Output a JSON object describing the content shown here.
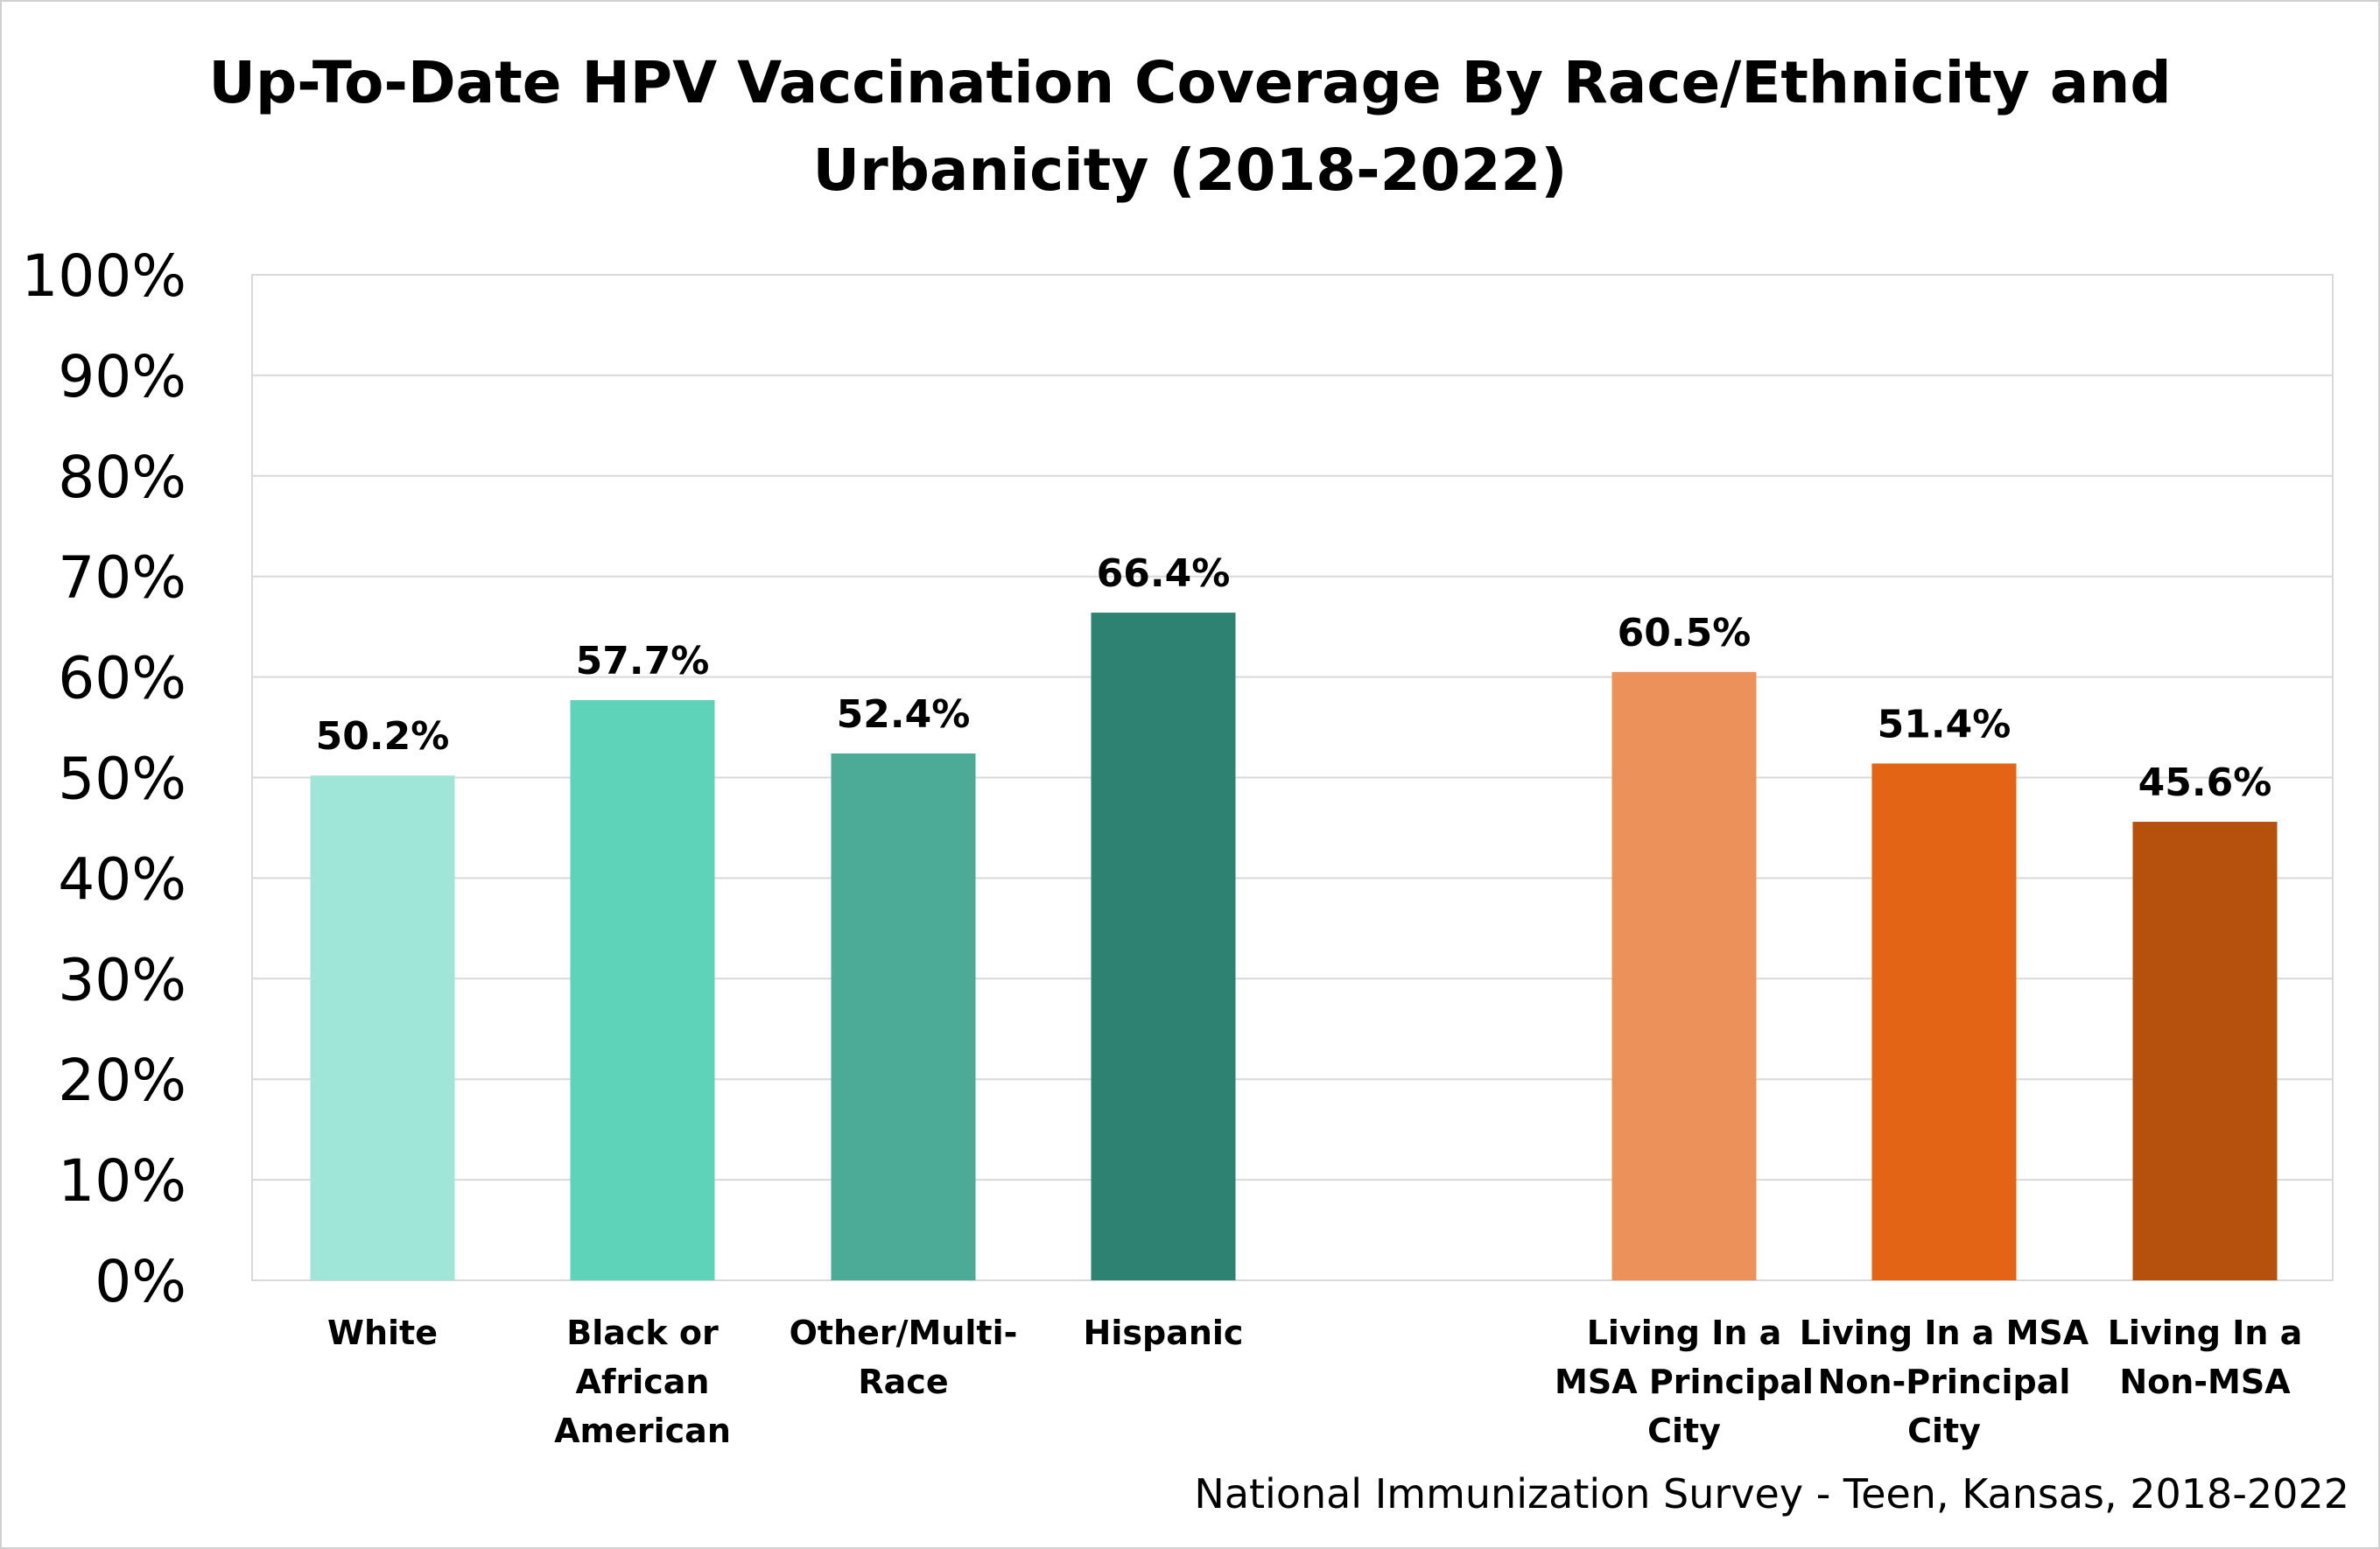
{
  "chart_data": {
    "type": "bar",
    "title_lines": [
      "Up-To-Date HPV Vaccination Coverage By Race/Ethnicity and",
      "Urbanicity (2018-2022)"
    ],
    "categories": [
      [
        "White"
      ],
      [
        "Black or",
        "African",
        "American"
      ],
      [
        "Other/Multi-",
        "Race"
      ],
      [
        "Hispanic"
      ],
      [
        "Living In a",
        "MSA Principal",
        "City"
      ],
      [
        "Living In a MSA",
        "Non-Principal",
        "City"
      ],
      [
        "Living In a",
        "Non-MSA"
      ]
    ],
    "values": [
      50.2,
      57.7,
      52.4,
      66.4,
      60.5,
      51.4,
      45.6
    ],
    "data_labels": [
      "50.2%",
      "57.7%",
      "52.4%",
      "66.4%",
      "60.5%",
      "51.4%",
      "45.6%"
    ],
    "colors": [
      "#9fe5d8",
      "#5ed3b9",
      "#4bab96",
      "#2d8271",
      "#ed915a",
      "#e36414",
      "#b6500d"
    ],
    "ylim": [
      0,
      100
    ],
    "yticks": [
      "0%",
      "10%",
      "20%",
      "30%",
      "40%",
      "50%",
      "60%",
      "70%",
      "80%",
      "90%",
      "100%"
    ],
    "grid": true,
    "xlabel": "",
    "ylabel": "",
    "gridline_color": "#d9d9d9"
  },
  "source_note": "National Immunization Survey - Teen, Kansas, 2018-2022"
}
